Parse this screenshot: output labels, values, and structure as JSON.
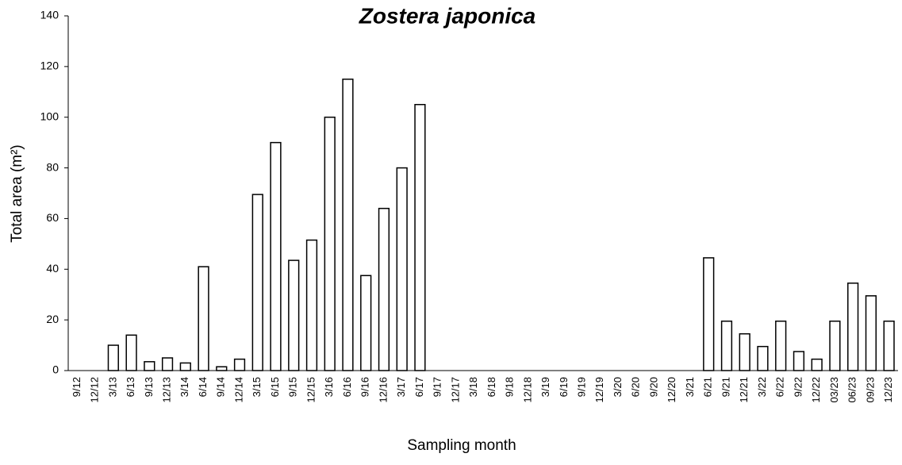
{
  "chart_data": {
    "type": "bar",
    "title": "Zostera japonica",
    "x_label": "Sampling month",
    "y_label": "Total area (m²)",
    "categories": [
      "9/12",
      "12/12",
      "3/13",
      "6/13",
      "9/13",
      "12/13",
      "3/14",
      "6/14",
      "9/14",
      "12/14",
      "3/15",
      "6/15",
      "9/15",
      "12/15",
      "3/16",
      "6/16",
      "9/16",
      "12/16",
      "3/17",
      "6/17",
      "9/17",
      "12/17",
      "3/18",
      "6/18",
      "9/18",
      "12/18",
      "3/19",
      "6/19",
      "9/19",
      "12/19",
      "3/20",
      "6/20",
      "9/20",
      "12/20",
      "3/21",
      "6/21",
      "9/21",
      "12/21",
      "3/22",
      "6/22",
      "9/22",
      "12/22",
      "03/23",
      "06/23",
      "09/23",
      "12/23"
    ],
    "values": [
      0,
      0,
      10,
      14,
      3.5,
      5,
      3,
      41,
      1.5,
      4.5,
      69.5,
      90,
      43.5,
      51.5,
      100,
      115,
      37.5,
      64,
      80,
      105,
      0,
      0,
      0,
      0,
      0,
      0,
      0,
      0,
      0,
      0,
      0,
      0,
      0,
      0,
      0,
      44.5,
      19.5,
      14.5,
      9.5,
      19.5,
      7.5,
      4.5,
      19.5,
      34.5,
      29.5,
      19.5
    ],
    "color": "#ffffff",
    "edge_color": "#000000",
    "ylim": [
      0,
      140
    ],
    "yticks": [
      0,
      20,
      40,
      60,
      80,
      100,
      120,
      140
    ],
    "grid": false
  }
}
